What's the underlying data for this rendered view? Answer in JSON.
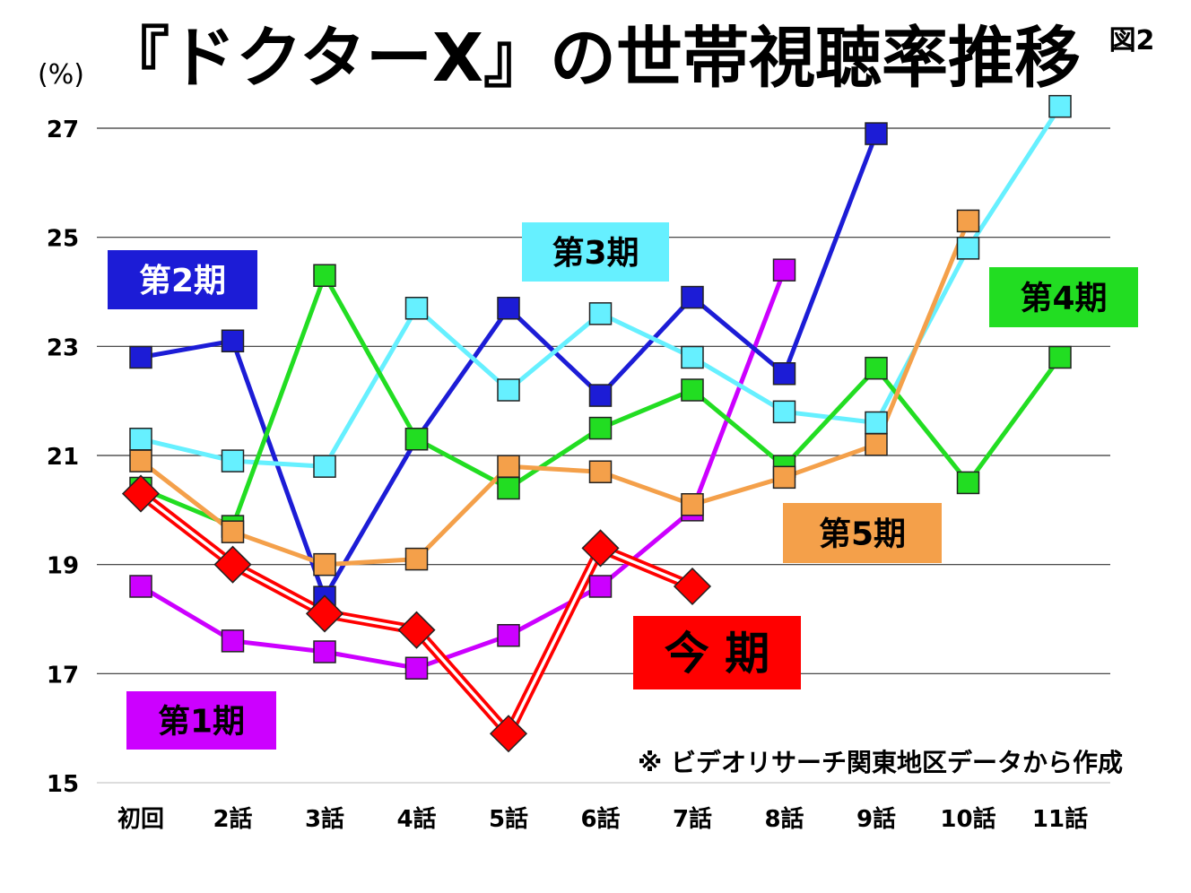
{
  "chart_data": {
    "type": "line",
    "title": "『ドクターX』の世帯視聴率推移",
    "figure_label": "図2",
    "unit_label": "(%)",
    "note": "※ ビデオリサーチ関東地区データから作成",
    "categories": [
      "初回",
      "2話",
      "3話",
      "4話",
      "5話",
      "6話",
      "7話",
      "8話",
      "9話",
      "10話",
      "11話"
    ],
    "ylim": [
      15,
      27
    ],
    "yticks": [
      15,
      17,
      19,
      21,
      23,
      25,
      27
    ],
    "grid": true,
    "series": [
      {
        "name": "第1期",
        "color": "#cc00ff",
        "marker": "square",
        "values": [
          18.6,
          17.6,
          17.4,
          17.1,
          17.7,
          18.6,
          20.0,
          24.4,
          null,
          null,
          null
        ]
      },
      {
        "name": "第2期",
        "color": "#1c1cd6",
        "marker": "square",
        "values": [
          22.8,
          23.1,
          18.4,
          21.3,
          23.7,
          22.1,
          23.9,
          22.5,
          26.9,
          null,
          null
        ]
      },
      {
        "name": "第3期",
        "color": "#66f0ff",
        "marker": "square",
        "values": [
          21.3,
          20.9,
          20.8,
          23.7,
          22.2,
          23.6,
          22.8,
          21.8,
          21.6,
          24.8,
          27.4
        ]
      },
      {
        "name": "第4期",
        "color": "#22dd22",
        "marker": "square",
        "values": [
          20.4,
          19.7,
          24.3,
          21.3,
          20.4,
          21.5,
          22.2,
          20.8,
          22.6,
          20.5,
          22.8
        ]
      },
      {
        "name": "第5期",
        "color": "#f4a04a",
        "marker": "square",
        "values": [
          20.9,
          19.6,
          19.0,
          19.1,
          20.8,
          20.7,
          20.1,
          20.6,
          21.2,
          25.3,
          null
        ]
      },
      {
        "name": "今 期",
        "color": "#ff0000",
        "marker": "diamond",
        "style": "double",
        "values": [
          20.3,
          19.0,
          18.1,
          17.8,
          15.9,
          19.3,
          18.6,
          null,
          null,
          null,
          null
        ]
      }
    ],
    "labels": [
      {
        "text": "第1期",
        "bg": "#cc00ff",
        "color": "#000000"
      },
      {
        "text": "第2期",
        "bg": "#1c1cd6",
        "color": "#ffffff"
      },
      {
        "text": "第3期",
        "bg": "#66f0ff",
        "color": "#000000"
      },
      {
        "text": "第4期",
        "bg": "#22dd22",
        "color": "#000000"
      },
      {
        "text": "第5期",
        "bg": "#f4a04a",
        "color": "#000000"
      },
      {
        "text": "今 期",
        "bg": "#ff0000",
        "color": "#000000"
      }
    ]
  }
}
